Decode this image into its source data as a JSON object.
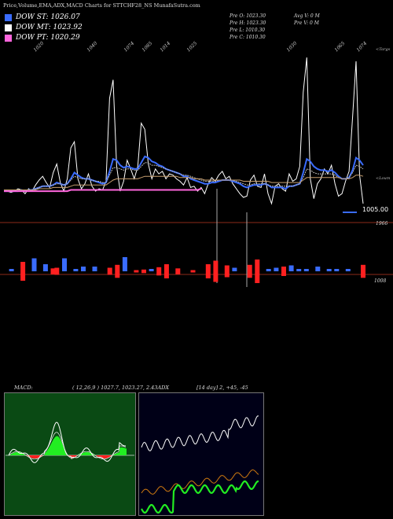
{
  "header": {
    "title": "Price,Volume,EMA,ADX,MACD Charts for STTCHF28_NS  MunafaSutra.com"
  },
  "legend": [
    {
      "label": "DOW ST: 1026.07",
      "color": "#3a6cff"
    },
    {
      "label": "DOW MT: 1023.92",
      "color": "#ffffff"
    },
    {
      "label": "DOW PT: 1020.29",
      "color": "#ff66dd"
    }
  ],
  "ohlc": {
    "col1": [
      "Pre   O: 1023.30",
      "Pre   H: 1023.30",
      "Pre   L: 1010.30",
      "Pre   C: 1010.30"
    ],
    "col2": [
      "Avg V: 0   M",
      "Pre   V: 0   M"
    ]
  },
  "price_panel": {
    "current_price": "1005.00",
    "level_upper": "1966",
    "level_lower": "1008",
    "right_top_label": "<Targs",
    "right_mid_label": "<Loum"
  },
  "macd_panel": {
    "label": "MACD:",
    "params": "( 12,26,9 ) 1027.7,  1023.27,  2.43",
    "adx_label": "ADX",
    "adx_params": "[14  day] 2,  +45,  -45"
  },
  "chart_data": {
    "type": "line",
    "x_tick_labels": [
      "1020",
      "1040",
      "1074",
      "1085",
      "1014",
      "1025",
      "1030",
      "1065",
      "1074"
    ],
    "series": [
      {
        "color": "#ffffff",
        "values": [
          1021,
          1020,
          1019,
          1020,
          1022,
          1021,
          1018,
          1022,
          1020,
          1025,
          1029,
          1032,
          1027,
          1023,
          1035,
          1042,
          1027,
          1020,
          1030,
          1055,
          1060,
          1030,
          1022,
          1026,
          1034,
          1024,
          1020,
          1022,
          1021,
          1028,
          1095,
          1110,
          1040,
          1020,
          1028,
          1045,
          1038,
          1030,
          1040,
          1075,
          1070,
          1042,
          1030,
          1038,
          1034,
          1036,
          1030,
          1034,
          1033,
          1030,
          1028,
          1025,
          1031,
          1023,
          1024,
          1020,
          1023,
          1018,
          1026,
          1031,
          1028,
          1033,
          1036,
          1030,
          1032,
          1026,
          1022,
          1018,
          1015,
          1016,
          1029,
          1033,
          1024,
          1023,
          1034,
          1018,
          1010,
          1024,
          1026,
          1022,
          1020,
          1034,
          1028,
          1030,
          1040,
          1100,
          1128,
          1030,
          1014,
          1026,
          1030,
          1038,
          1034,
          1041,
          1026,
          1016,
          1018,
          1028,
          1036,
          1080,
          1125,
          1033,
          1010
        ]
      },
      {
        "color": "#3a6cff",
        "values": [
          1020,
          1020,
          1020,
          1020,
          1020,
          1021,
          1020,
          1021,
          1021,
          1022,
          1023,
          1024,
          1024,
          1024,
          1025,
          1027,
          1026,
          1025,
          1026,
          1030,
          1035,
          1033,
          1031,
          1030,
          1030,
          1029,
          1028,
          1027,
          1026,
          1027,
          1036,
          1046,
          1045,
          1041,
          1039,
          1040,
          1039,
          1038,
          1038,
          1043,
          1048,
          1047,
          1044,
          1043,
          1041,
          1040,
          1038,
          1037,
          1036,
          1035,
          1034,
          1032,
          1032,
          1030,
          1029,
          1028,
          1027,
          1026,
          1026,
          1027,
          1027,
          1028,
          1029,
          1029,
          1029,
          1028,
          1027,
          1026,
          1024,
          1023,
          1024,
          1025,
          1025,
          1025,
          1026,
          1025,
          1023,
          1023,
          1023,
          1023,
          1022,
          1024,
          1024,
          1025,
          1026,
          1035,
          1046,
          1044,
          1040,
          1038,
          1037,
          1037,
          1036,
          1037,
          1035,
          1032,
          1030,
          1030,
          1031,
          1037,
          1047,
          1045,
          1041
        ]
      },
      {
        "color": "#bbbbbb",
        "values": [
          1021,
          1021,
          1021,
          1021,
          1021,
          1021,
          1021,
          1021,
          1021,
          1022,
          1023,
          1024,
          1024,
          1024,
          1025,
          1026,
          1026,
          1025,
          1026,
          1029,
          1032,
          1031,
          1030,
          1030,
          1030,
          1029,
          1028,
          1028,
          1027,
          1027,
          1033,
          1039,
          1039,
          1038,
          1037,
          1038,
          1038,
          1037,
          1037,
          1040,
          1043,
          1043,
          1041,
          1041,
          1040,
          1039,
          1038,
          1037,
          1036,
          1035,
          1034,
          1033,
          1033,
          1032,
          1031,
          1030,
          1029,
          1028,
          1028,
          1028,
          1028,
          1029,
          1029,
          1029,
          1029,
          1029,
          1028,
          1027,
          1026,
          1025,
          1025,
          1026,
          1026,
          1026,
          1026,
          1025,
          1024,
          1024,
          1024,
          1024,
          1024,
          1024,
          1024,
          1025,
          1026,
          1031,
          1038,
          1037,
          1035,
          1034,
          1034,
          1034,
          1034,
          1034,
          1033,
          1031,
          1030,
          1030,
          1031,
          1035,
          1041,
          1040,
          1038
        ]
      },
      {
        "color": "#c8a070",
        "values": [
          1021,
          1021,
          1021,
          1021,
          1021,
          1021,
          1021,
          1021,
          1021,
          1021,
          1022,
          1022,
          1022,
          1022,
          1023,
          1023,
          1023,
          1023,
          1023,
          1024,
          1025,
          1025,
          1025,
          1025,
          1025,
          1025,
          1025,
          1025,
          1025,
          1025,
          1027,
          1029,
          1030,
          1030,
          1030,
          1030,
          1030,
          1030,
          1030,
          1031,
          1032,
          1032,
          1032,
          1032,
          1032,
          1032,
          1032,
          1032,
          1032,
          1032,
          1031,
          1031,
          1031,
          1031,
          1030,
          1030,
          1030,
          1029,
          1029,
          1029,
          1029,
          1029,
          1029,
          1029,
          1029,
          1029,
          1029,
          1029,
          1028,
          1028,
          1028,
          1028,
          1028,
          1028,
          1028,
          1028,
          1027,
          1027,
          1027,
          1027,
          1027,
          1027,
          1027,
          1027,
          1027,
          1029,
          1031,
          1031,
          1031,
          1031,
          1031,
          1031,
          1031,
          1031,
          1031,
          1031,
          1030,
          1030,
          1030,
          1031,
          1033,
          1033,
          1032
        ]
      },
      {
        "color": "#ff66dd",
        "values": [
          1020,
          1020,
          1020,
          1020,
          1020,
          1020,
          1020,
          1020,
          1020,
          1020,
          1020,
          1020,
          1020,
          1020,
          1020,
          1020,
          1020,
          1020,
          1020,
          1021,
          1021,
          1021,
          1021,
          1021,
          1021,
          1021,
          1021,
          1021,
          1021,
          1021,
          1021,
          1021,
          1021,
          1021,
          1021,
          1021,
          1021,
          1021,
          1021,
          1021,
          1021,
          1021,
          1021,
          1021,
          1021,
          1021,
          1021,
          1021,
          1021,
          1021,
          1021,
          1021,
          1021,
          1021,
          1021,
          1021,
          1022
        ]
      }
    ],
    "volume_bars": [
      {
        "i": 2,
        "up": true,
        "v": 0.1
      },
      {
        "i": 5,
        "up": false,
        "v": 0.8
      },
      {
        "i": 8,
        "up": true,
        "v": 0.55
      },
      {
        "i": 11,
        "up": true,
        "v": 0.3
      },
      {
        "i": 13,
        "up": false,
        "v": 0.25
      },
      {
        "i": 14,
        "up": false,
        "v": 0.3
      },
      {
        "i": 16,
        "up": true,
        "v": 0.55
      },
      {
        "i": 19,
        "up": true,
        "v": 0.1
      },
      {
        "i": 21,
        "up": true,
        "v": 0.2
      },
      {
        "i": 24,
        "up": true,
        "v": 0.2
      },
      {
        "i": 28,
        "up": false,
        "v": 0.3
      },
      {
        "i": 30,
        "up": false,
        "v": 0.55
      },
      {
        "i": 32,
        "up": true,
        "v": 0.6
      },
      {
        "i": 35,
        "up": false,
        "v": 0.1
      },
      {
        "i": 37,
        "up": false,
        "v": 0.15
      },
      {
        "i": 39,
        "up": true,
        "v": 0.1
      },
      {
        "i": 41,
        "up": false,
        "v": 0.35
      },
      {
        "i": 43,
        "up": false,
        "v": 0.6
      },
      {
        "i": 46,
        "up": false,
        "v": 0.25
      },
      {
        "i": 50,
        "up": false,
        "v": 0.1
      },
      {
        "i": 54,
        "up": false,
        "v": 0.6
      },
      {
        "i": 56,
        "up": false,
        "v": 0.9
      },
      {
        "i": 59,
        "up": false,
        "v": 0.5
      },
      {
        "i": 61,
        "up": true,
        "v": 0.15
      },
      {
        "i": 65,
        "up": false,
        "v": 0.55
      },
      {
        "i": 67,
        "up": false,
        "v": 1.0
      },
      {
        "i": 70,
        "up": true,
        "v": 0.1
      },
      {
        "i": 72,
        "up": true,
        "v": 0.15
      },
      {
        "i": 74,
        "up": false,
        "v": 0.4
      },
      {
        "i": 76,
        "up": true,
        "v": 0.25
      },
      {
        "i": 78,
        "up": true,
        "v": 0.1
      },
      {
        "i": 80,
        "up": true,
        "v": 0.1
      },
      {
        "i": 83,
        "up": true,
        "v": 0.2
      },
      {
        "i": 86,
        "up": true,
        "v": 0.1
      },
      {
        "i": 88,
        "up": true,
        "v": 0.1
      },
      {
        "i": 91,
        "up": true,
        "v": 0.1
      },
      {
        "i": 95,
        "up": false,
        "v": 0.55
      }
    ]
  }
}
